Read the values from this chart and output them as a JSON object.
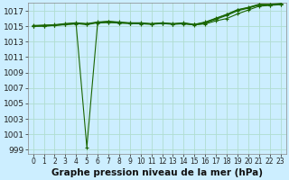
{
  "bg_color": "#cceeff",
  "grid_color": "#b0ddd0",
  "line_color": "#1a6600",
  "title": "Graphe pression niveau de la mer (hPa)",
  "title_fontsize": 7.5,
  "ylabel_fontsize": 6.5,
  "xlabel_fontsize": 5.5,
  "xlim": [
    -0.5,
    23.5
  ],
  "ylim": [
    998.5,
    1018.0
  ],
  "yticks": [
    999,
    1001,
    1003,
    1005,
    1007,
    1009,
    1011,
    1013,
    1015,
    1017
  ],
  "xticks": [
    0,
    1,
    2,
    3,
    4,
    5,
    6,
    7,
    8,
    9,
    10,
    11,
    12,
    13,
    14,
    15,
    16,
    17,
    18,
    19,
    20,
    21,
    22,
    23
  ],
  "series": [
    [
      1015.0,
      1015.0,
      1015.1,
      1015.2,
      1015.3,
      999.3,
      1015.4,
      1015.5,
      1015.4,
      1015.4,
      1015.3,
      1015.3,
      1015.4,
      1015.3,
      1015.3,
      1015.2,
      1015.3,
      1015.7,
      1016.0,
      1016.6,
      1017.1,
      1017.6,
      1017.7,
      1017.8
    ],
    [
      1015.1,
      1015.15,
      1015.2,
      1015.35,
      1015.45,
      1015.35,
      1015.55,
      1015.65,
      1015.55,
      1015.45,
      1015.45,
      1015.35,
      1015.45,
      1015.35,
      1015.45,
      1015.25,
      1015.55,
      1016.05,
      1016.55,
      1017.15,
      1017.45,
      1017.85,
      1017.85,
      1017.95
    ],
    [
      1015.05,
      1015.1,
      1015.15,
      1015.3,
      1015.4,
      1015.3,
      1015.5,
      1015.6,
      1015.5,
      1015.4,
      1015.4,
      1015.3,
      1015.4,
      1015.3,
      1015.4,
      1015.2,
      1015.5,
      1016.0,
      1016.5,
      1017.1,
      1017.4,
      1017.8,
      1017.8,
      1017.9
    ],
    [
      1015.0,
      1015.05,
      1015.1,
      1015.25,
      1015.35,
      1015.2,
      1015.45,
      1015.5,
      1015.45,
      1015.35,
      1015.35,
      1015.25,
      1015.35,
      1015.25,
      1015.35,
      1015.15,
      1015.4,
      1015.9,
      1016.4,
      1017.0,
      1017.35,
      1017.75,
      1017.75,
      1017.85
    ]
  ]
}
